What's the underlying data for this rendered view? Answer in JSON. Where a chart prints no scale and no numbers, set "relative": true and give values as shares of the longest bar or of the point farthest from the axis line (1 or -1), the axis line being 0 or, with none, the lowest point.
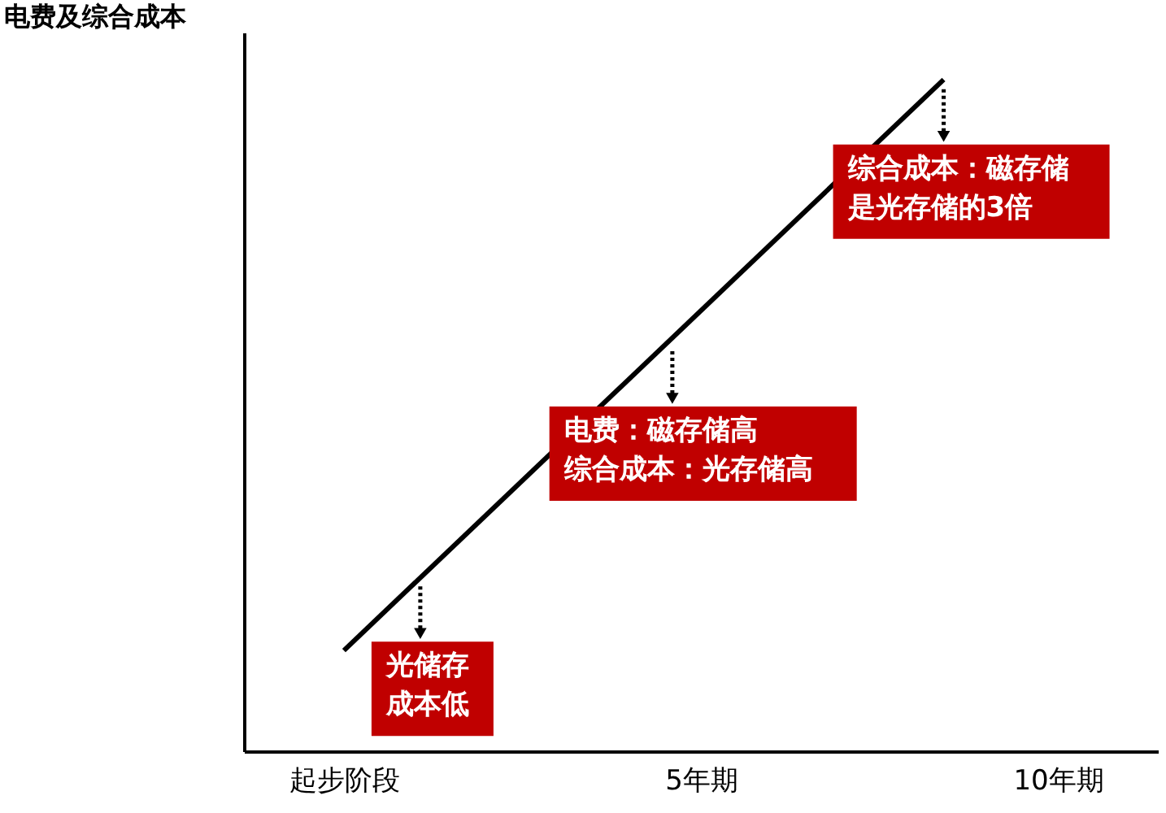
{
  "chart_data": {
    "type": "line",
    "relative": true,
    "ylabel": "电费及综合成本",
    "x": [
      0,
      8.4
    ],
    "xlim": [
      -1.4,
      11.4
    ],
    "xticks": [
      {
        "value": 0,
        "label": "起步阶段"
      },
      {
        "value": 5,
        "label": "5年期"
      },
      {
        "value": 10,
        "label": "10年期"
      }
    ],
    "series": [
      {
        "color": "#000000",
        "values": [
          0.15,
          1.0
        ]
      }
    ],
    "annotations": [
      {
        "text": "光储存成本低",
        "x": 1.07,
        "y": 0.26
      },
      {
        "text": "电费：磁存储高",
        "x": 4.6,
        "y": 0.61
      },
      "综合成本：光存储高",
      {
        "text": "综合成本：磁存储是光存储的3倍",
        "x": 8.4,
        "y": 1.0
      }
    ],
    "grid": false,
    "marker": "none",
    "line_style": "solid"
  }
}
